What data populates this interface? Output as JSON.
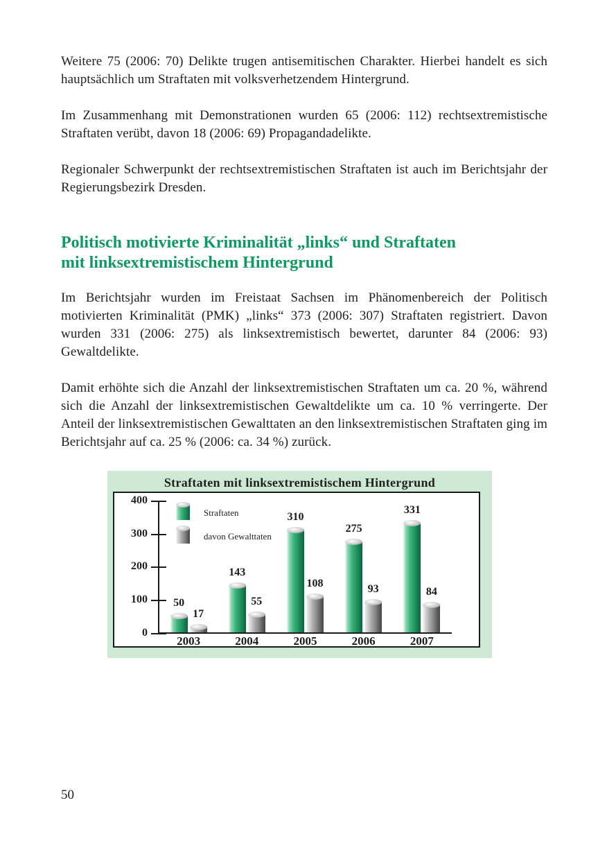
{
  "document": {
    "paragraphs_top": [
      "Weitere 75 (2006: 70) Delikte trugen antisemitischen Charakter. Hierbei handelt es sich hauptsächlich um Straftaten mit volksverhetzendem Hintergrund.",
      "Im Zusammenhang mit Demonstrationen wurden 65 (2006: 112) rechtsextremistische Straftaten verübt, davon 18 (2006: 69) Propagandadelikte.",
      "Regionaler Schwerpunkt der rechtsextremistischen Straftaten ist auch im Berichtsjahr der Regierungsbezirk Dresden."
    ],
    "heading": {
      "lines": [
        "Politisch motivierte Kriminalität „links“ und Straftaten",
        "mit linksextremistischem Hintergrund"
      ]
    },
    "paragraphs_body": [
      "Im Berichtsjahr wurden im Freistaat Sachsen im Phänomenbereich der Politisch motivierten Kriminalität (PMK) „links“ 373 (2006: 307) Straftaten registriert. Davon wurden 331 (2006: 275) als linksextremistisch bewertet, darunter 84 (2006: 93) Gewaltdelikte.",
      "Damit erhöhte sich die Anzahl der linksextremistischen Straftaten um ca. 20 %, während sich die Anzahl der linksextremistischen Gewaltdelikte um ca. 10 % verringerte. Der Anteil der linksextremistischen Gewalttaten an den linksextremistischen Straftaten ging im Berichtsjahr auf ca. 25 % (2006: ca. 34 %) zurück."
    ],
    "page_number": "50"
  },
  "chart_data": {
    "type": "bar",
    "title": "Straftaten mit linksextremistischem Hintergrund",
    "categories": [
      "2003",
      "2004",
      "2005",
      "2006",
      "2007"
    ],
    "series": [
      {
        "name": "Straftaten",
        "values": [
          50,
          143,
          310,
          275,
          331
        ],
        "color_key": "green"
      },
      {
        "name": "davon Gewalttaten",
        "values": [
          17,
          55,
          108,
          93,
          84
        ],
        "color_key": "gray"
      }
    ],
    "ylim": [
      0,
      400
    ],
    "yticks": [
      0,
      100,
      200,
      300,
      400
    ],
    "legend_position": "top-left-inside",
    "grid": false,
    "bar_style": "cylinder-3d"
  },
  "colors": {
    "heading_green": "#0d9a62",
    "panel_green": "#cde8d4",
    "bar_green": "#2fa271",
    "bar_gray": "#8f8f8f",
    "axis": "#1a1a1a",
    "text": "#1f1f1f",
    "page_background": "#ffffff"
  }
}
